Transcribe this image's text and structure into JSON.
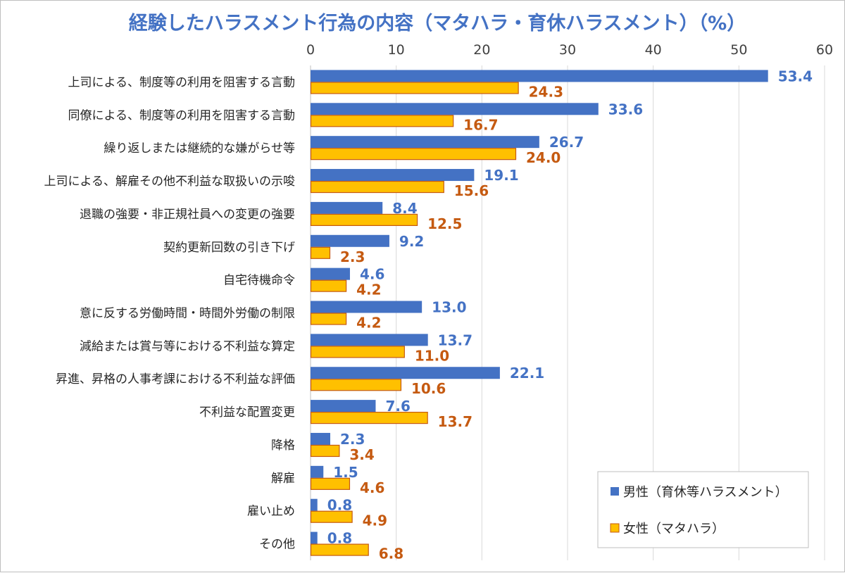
{
  "chart_data": {
    "type": "bar",
    "orientation": "horizontal",
    "title": "経験したハラスメント行為の内容（マタハラ・育休ハラスメント）（%）",
    "xlim": [
      0,
      60
    ],
    "x_ticks": [
      0,
      10,
      20,
      30,
      40,
      50,
      60
    ],
    "x_axis_position": "top",
    "grid": "vertical",
    "legend_placement": "bottom-right",
    "categories": [
      "上司による、制度等の利用を阻害する言動",
      "同僚による、制度等の利用を阻害する言動",
      "繰り返しまたは継続的な嫌がらせ等",
      "上司による、解雇その他不利益な取扱いの示唆",
      "退職の強要・非正規社員への変更の強要",
      "契約更新回数の引き下げ",
      "自宅待機命令",
      "意に反する労働時間・時間外労働の制限",
      "減給または賞与等における不利益な算定",
      "昇進、昇格の人事考課における不利益な評価",
      "不利益な配置変更",
      "降格",
      "解雇",
      "雇い止め",
      "その他"
    ],
    "series": [
      {
        "name": "男性（育休等ハラスメント）",
        "color": "#4472c4",
        "values": [
          53.4,
          33.6,
          26.7,
          19.1,
          8.4,
          9.2,
          4.6,
          13.0,
          13.7,
          22.1,
          7.6,
          2.3,
          1.5,
          0.8,
          0.8
        ],
        "labels": [
          "53.4",
          "33.6",
          "26.7",
          "19.1",
          "8.4",
          "9.2",
          "4.6",
          "13.0",
          "13.7",
          "22.1",
          "7.6",
          "2.3",
          "1.5",
          "0.8",
          "0.8"
        ]
      },
      {
        "name": "女性（マタハラ）",
        "color": "#ffc000",
        "border_color": "#c55a11",
        "values": [
          24.3,
          16.7,
          24.0,
          15.6,
          12.5,
          2.3,
          4.2,
          4.2,
          11.0,
          10.6,
          13.7,
          3.4,
          4.6,
          4.9,
          6.8
        ],
        "labels": [
          "24.3",
          "16.7",
          "24.0",
          "15.6",
          "12.5",
          "2.3",
          "4.2",
          "4.2",
          "11.0",
          "10.6",
          "13.7",
          "3.4",
          "4.6",
          "4.9",
          "6.8"
        ]
      }
    ]
  }
}
